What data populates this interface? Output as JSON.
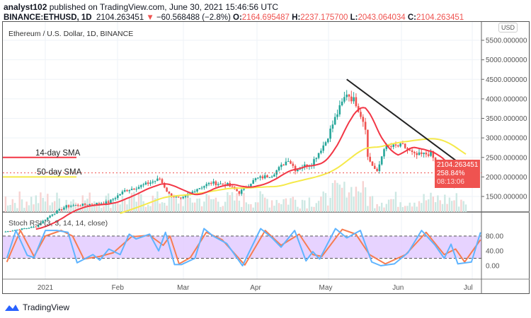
{
  "header": {
    "author": "analyst102",
    "published": "published on TradingView.com, June 30, 2021 15:46:56 UTC",
    "symbol": "BINANCE:ETHUSD, 1D",
    "last": "2104.263451",
    "change": "−60.568488 (−2.8%)",
    "o_label": "O:",
    "o": "2164.695487",
    "h_label": "H:",
    "h": "2237.175700",
    "l_label": "L:",
    "l": "2043.064034",
    "c_label": "C:",
    "c": "2104.263451"
  },
  "chart_title": "Ethereum / U.S. Dollar, 1D, BINANCE",
  "currency": "USD",
  "price_label": {
    "price": "2104.263451",
    "pct": "258.84%",
    "countdown": "08:13:06"
  },
  "annotations": {
    "sma14": "14-day SMA",
    "sma50": "50-day SMA"
  },
  "indicator_label": "Stoch RSI (3, 3, 14, 14, close)",
  "brand": "TradingView",
  "colors": {
    "up": "#26a69a",
    "down": "#ef5350",
    "sma14": "#f23645",
    "sma50": "#f5e94a",
    "stoch_k": "#5fb4ff",
    "stoch_d": "#f77c50",
    "rsi_band": "#e1c8ff",
    "trendline": "#222222"
  },
  "chart_data": {
    "type": "candlestick",
    "price_axis": {
      "ticks": [
        "1500.000000",
        "2000.000000",
        "2500.000000",
        "3000.000000",
        "3500.000000",
        "4000.000000",
        "4500.000000",
        "5000.000000",
        "5500.000000"
      ],
      "range": [
        1100,
        5700
      ]
    },
    "time_axis": {
      "ticks": [
        "2021",
        "Feb",
        "Mar",
        "Apr",
        "May",
        "Jun",
        "Jul"
      ],
      "start": "2020-12-15",
      "end": "2021-06-30"
    },
    "close_keypoints": [
      [
        "2020-12-15",
        600
      ],
      [
        "2020-12-28",
        730
      ],
      [
        "2021-01-04",
        1050
      ],
      [
        "2021-01-10",
        1250
      ],
      [
        "2021-01-20",
        1300
      ],
      [
        "2021-01-28",
        1350
      ],
      [
        "2021-02-04",
        1650
      ],
      [
        "2021-02-10",
        1750
      ],
      [
        "2021-02-19",
        1950
      ],
      [
        "2021-02-23",
        1550
      ],
      [
        "2021-02-28",
        1420
      ],
      [
        "2021-03-07",
        1700
      ],
      [
        "2021-03-13",
        1850
      ],
      [
        "2021-03-20",
        1800
      ],
      [
        "2021-03-25",
        1600
      ],
      [
        "2021-04-01",
        1950
      ],
      [
        "2021-04-08",
        2050
      ],
      [
        "2021-04-15",
        2450
      ],
      [
        "2021-04-18",
        2200
      ],
      [
        "2021-04-25",
        2350
      ],
      [
        "2021-05-01",
        2900
      ],
      [
        "2021-05-05",
        3500
      ],
      [
        "2021-05-10",
        4150
      ],
      [
        "2021-05-14",
        3900
      ],
      [
        "2021-05-18",
        3300
      ],
      [
        "2021-05-19",
        2500
      ],
      [
        "2021-05-23",
        2100
      ],
      [
        "2021-05-26",
        2750
      ],
      [
        "2021-06-03",
        2800
      ],
      [
        "2021-06-08",
        2550
      ],
      [
        "2021-06-15",
        2600
      ],
      [
        "2021-06-21",
        1900
      ],
      [
        "2021-06-26",
        1800
      ],
      [
        "2021-06-30",
        2104
      ]
    ],
    "trendline": [
      [
        "2021-05-10",
        4500
      ],
      [
        "2021-06-30",
        2230
      ]
    ],
    "sma14_ref_level": 2500,
    "sma50_ref_level": 2000,
    "stoch_rsi": {
      "axis_ticks": [
        "80.00",
        "40.00",
        "0.00"
      ],
      "bands": [
        20,
        80
      ],
      "k": [
        [
          "2020-12-15",
          20
        ],
        [
          "2020-12-19",
          95
        ],
        [
          "2020-12-24",
          28
        ],
        [
          "2020-12-27",
          22
        ],
        [
          "2021-01-01",
          95
        ],
        [
          "2021-01-06",
          95
        ],
        [
          "2021-01-11",
          90
        ],
        [
          "2021-01-15",
          8
        ],
        [
          "2021-01-22",
          30
        ],
        [
          "2021-01-25",
          15
        ],
        [
          "2021-01-29",
          45
        ],
        [
          "2021-02-03",
          30
        ],
        [
          "2021-02-07",
          85
        ],
        [
          "2021-02-10",
          72
        ],
        [
          "2021-02-16",
          85
        ],
        [
          "2021-02-20",
          40
        ],
        [
          "2021-02-23",
          90
        ],
        [
          "2021-02-27",
          3
        ],
        [
          "2021-03-02",
          3
        ],
        [
          "2021-03-08",
          20
        ],
        [
          "2021-03-12",
          100
        ],
        [
          "2021-03-16",
          80
        ],
        [
          "2021-03-22",
          60
        ],
        [
          "2021-03-29",
          0
        ],
        [
          "2021-04-06",
          100
        ],
        [
          "2021-04-11",
          75
        ],
        [
          "2021-04-15",
          50
        ],
        [
          "2021-04-21",
          95
        ],
        [
          "2021-04-26",
          13
        ],
        [
          "2021-04-29",
          38
        ],
        [
          "2021-05-02",
          18
        ],
        [
          "2021-05-09",
          100
        ],
        [
          "2021-05-14",
          75
        ],
        [
          "2021-05-20",
          95
        ],
        [
          "2021-05-25",
          10
        ],
        [
          "2021-05-29",
          0
        ],
        [
          "2021-06-04",
          5
        ],
        [
          "2021-06-10",
          35
        ],
        [
          "2021-06-16",
          95
        ],
        [
          "2021-06-22",
          55
        ],
        [
          "2021-06-26",
          20
        ],
        [
          "2021-06-29",
          58
        ],
        [
          "2021-07-02",
          5
        ],
        [
          "2021-07-08",
          10
        ],
        [
          "2021-07-12",
          90
        ]
      ],
      "d": [
        [
          "2020-12-15",
          10
        ],
        [
          "2020-12-21",
          95
        ],
        [
          "2020-12-27",
          25
        ],
        [
          "2021-01-01",
          80
        ],
        [
          "2021-01-08",
          95
        ],
        [
          "2021-01-13",
          80
        ],
        [
          "2021-01-18",
          18
        ],
        [
          "2021-01-25",
          25
        ],
        [
          "2021-01-31",
          35
        ],
        [
          "2021-02-08",
          78
        ],
        [
          "2021-02-16",
          82
        ],
        [
          "2021-02-22",
          55
        ],
        [
          "2021-02-25",
          80
        ],
        [
          "2021-03-01",
          5
        ],
        [
          "2021-03-06",
          22
        ],
        [
          "2021-03-13",
          90
        ],
        [
          "2021-03-20",
          70
        ],
        [
          "2021-03-30",
          2
        ],
        [
          "2021-04-08",
          95
        ],
        [
          "2021-04-15",
          55
        ],
        [
          "2021-04-23",
          85
        ],
        [
          "2021-04-29",
          30
        ],
        [
          "2021-05-03",
          25
        ],
        [
          "2021-05-12",
          98
        ],
        [
          "2021-05-18",
          85
        ],
        [
          "2021-05-24",
          30
        ],
        [
          "2021-05-31",
          5
        ],
        [
          "2021-06-09",
          30
        ],
        [
          "2021-06-18",
          90
        ],
        [
          "2021-06-26",
          30
        ],
        [
          "2021-07-01",
          45
        ],
        [
          "2021-07-05",
          10
        ],
        [
          "2021-07-12",
          70
        ]
      ]
    }
  }
}
